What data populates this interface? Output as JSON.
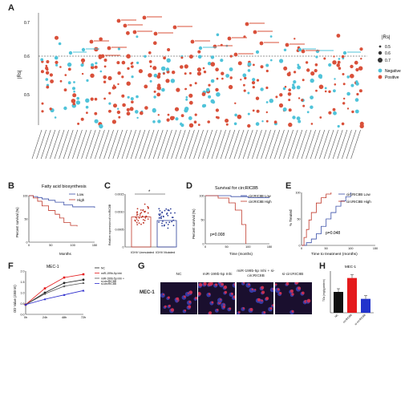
{
  "figure": {
    "panels": [
      "A",
      "B",
      "C",
      "D",
      "E",
      "F",
      "G",
      "H"
    ]
  },
  "panelA": {
    "ylabel": "|Rs|",
    "yticks": [
      "0.7",
      "0.6",
      "0.5"
    ],
    "legend_title": "|Rs|",
    "legend_sizes": [
      "0.5",
      "0.6",
      "0.7"
    ],
    "legend_neg": "Negative",
    "legend_pos": "Positive",
    "colors": {
      "negative": "#4fc3d9",
      "positive": "#d9503a"
    }
  },
  "panelB": {
    "title": "Fatty acid biosynthesis",
    "ylabel": "Percent survival (%)",
    "xlabel": "Months",
    "legend": [
      "Low",
      "High"
    ],
    "colors": {
      "low": "#3a4fa8",
      "high": "#c0392b"
    },
    "yticks": [
      "100",
      "50",
      "0"
    ],
    "xticks": [
      "0",
      "50",
      "100",
      "150"
    ]
  },
  "panelC": {
    "ylabel": "Relative expression of circRIC8B",
    "categories": [
      "IGHV Unmutated",
      "IGHV Mutated"
    ],
    "sig": "*",
    "yticks": [
      "0.0015",
      "0.0010",
      "0.0005",
      "0"
    ],
    "colors": {
      "unmutated": "#c0392b",
      "mutated": "#2c3e99"
    }
  },
  "panelD": {
    "title": "Survival for circRIC8B",
    "ylabel": "Percent survival (%)",
    "xlabel": "Time (months)",
    "legend": [
      "circRIC8B Low",
      "circRIC8B High"
    ],
    "pvalue": "p=0.008",
    "yticks": [
      "100",
      "50",
      "0"
    ],
    "xticks": [
      "0",
      "50",
      "100",
      "150"
    ]
  },
  "panelE": {
    "ylabel": "% Treated",
    "xlabel": "Time to treatment (months)",
    "legend": [
      "circRIC8B Low",
      "circRIC8B High"
    ],
    "pvalue": "p=0.048",
    "yticks": [
      "100",
      "50",
      "0"
    ],
    "xticks": [
      "0",
      "50",
      "100",
      "150"
    ]
  },
  "panelF": {
    "title": "MEC-1",
    "ylabel": "OD Value (450nm)",
    "xticks": [
      "0h",
      "24h",
      "48h",
      "72h"
    ],
    "yticks": [
      "2.0",
      "1.5",
      "1.0",
      "0.5",
      "0.0"
    ],
    "legend": [
      "NC",
      "miR-199b-5p Inhi",
      "miR-199b-5p Inhi + si-circRIC8B",
      "si-circRIC8B"
    ]
  },
  "panelG": {
    "row_label": "MEC-1",
    "columns": [
      "NC",
      "miR-199b-5p Inhi",
      "miR-199b-5p Inhi + si-circRIC8B",
      "si-circRIC8B"
    ]
  },
  "panelH": {
    "title": "MEC-1",
    "ylabel": "TGs (mg/g protein)",
    "categories": [
      "NC",
      "circRIC8B",
      "si-circRIC8B"
    ],
    "colors": [
      "#111111",
      "#e41a1c",
      "#2233cc"
    ]
  },
  "chart_data": [
    {
      "panel": "B",
      "type": "line",
      "title": "Fatty acid biosynthesis",
      "xlabel": "Months",
      "ylabel": "Percent survival (%)",
      "xlim": [
        0,
        150
      ],
      "ylim": [
        0,
        100
      ],
      "series": [
        {
          "name": "Low",
          "x": [
            0,
            10,
            20,
            30,
            45,
            60,
            80,
            100,
            150
          ],
          "y": [
            100,
            98,
            96,
            93,
            90,
            86,
            80,
            76,
            74
          ]
        },
        {
          "name": "High",
          "x": [
            0,
            10,
            20,
            30,
            45,
            60,
            70,
            80,
            95,
            110
          ],
          "y": [
            100,
            95,
            88,
            78,
            68,
            60,
            52,
            42,
            36,
            34
          ]
        }
      ]
    },
    {
      "panel": "C",
      "type": "bar",
      "categories": [
        "IGHV Unmutated",
        "IGHV Mutated"
      ],
      "values": [
        0.00085,
        0.00075
      ],
      "ylim": [
        0,
        0.0015
      ]
    },
    {
      "panel": "D",
      "type": "line",
      "title": "Survival for circRIC8B",
      "xlabel": "Time (months)",
      "ylabel": "Percent survival (%)",
      "xlim": [
        0,
        150
      ],
      "ylim": [
        0,
        100
      ],
      "series": [
        {
          "name": "circRIC8B Low",
          "x": [
            0,
            40,
            60,
            100,
            150
          ],
          "y": [
            100,
            100,
            98,
            96,
            96
          ]
        },
        {
          "name": "circRIC8B High",
          "x": [
            0,
            30,
            55,
            70,
            85,
            95
          ],
          "y": [
            100,
            95,
            85,
            70,
            40,
            0
          ]
        }
      ]
    },
    {
      "panel": "E",
      "type": "line",
      "xlabel": "Time to treatment (months)",
      "ylabel": "% Treated",
      "xlim": [
        0,
        150
      ],
      "ylim": [
        0,
        100
      ],
      "series": [
        {
          "name": "circRIC8B Low",
          "x": [
            0,
            10,
            20,
            30,
            40,
            50,
            60,
            70,
            80,
            90,
            100
          ],
          "y": [
            0,
            5,
            12,
            22,
            36,
            50,
            62,
            74,
            84,
            92,
            100
          ]
        },
        {
          "name": "circRIC8B High",
          "x": [
            0,
            5,
            10,
            15,
            20,
            30,
            40,
            50,
            60
          ],
          "y": [
            0,
            15,
            30,
            48,
            62,
            80,
            90,
            97,
            100
          ]
        }
      ]
    },
    {
      "panel": "F",
      "type": "line",
      "categories": [
        "0h",
        "24h",
        "48h",
        "72h"
      ],
      "ylim": [
        0,
        2.0
      ],
      "series": [
        {
          "name": "NC",
          "values": [
            0.45,
            1.0,
            1.45,
            1.6
          ]
        },
        {
          "name": "miR-199b-5p Inhi",
          "values": [
            0.45,
            1.2,
            1.7,
            1.85
          ]
        },
        {
          "name": "miR-199b-5p Inhi + si-circRIC8B",
          "values": [
            0.45,
            0.95,
            1.3,
            1.45
          ]
        },
        {
          "name": "si-circRIC8B",
          "values": [
            0.45,
            0.7,
            0.9,
            1.1
          ]
        }
      ]
    },
    {
      "panel": "H",
      "type": "bar",
      "title": "MEC-1",
      "categories": [
        "NC",
        "circRIC8B",
        "si-circRIC8B"
      ],
      "values": [
        3.0,
        5.0,
        2.0
      ],
      "ylim": [
        0,
        6
      ]
    }
  ]
}
